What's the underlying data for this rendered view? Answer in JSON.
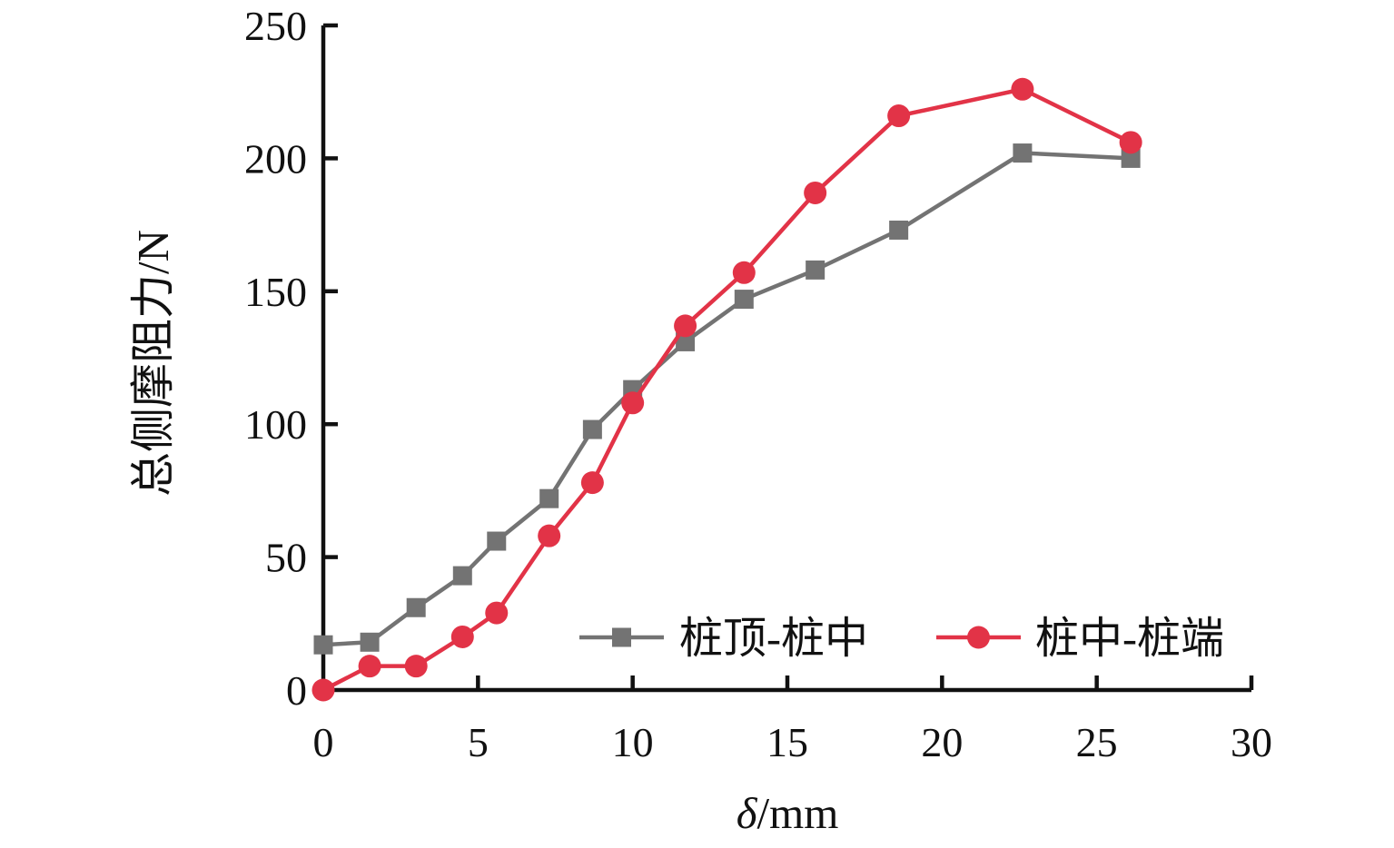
{
  "chart_data": {
    "type": "line",
    "title": "",
    "xlabel": "δ/mm",
    "ylabel": "总侧摩阻力/N",
    "xlim": [
      0,
      30
    ],
    "ylim": [
      0,
      250
    ],
    "xticks": [
      0,
      5,
      10,
      15,
      20,
      25,
      30
    ],
    "yticks": [
      0,
      50,
      100,
      150,
      200,
      250
    ],
    "grid": false,
    "legend_position": "inside-bottom",
    "x": [
      0,
      1.5,
      3,
      4.5,
      5.6,
      7.3,
      8.7,
      10,
      11.7,
      13.6,
      15.9,
      18.6,
      22.6,
      26.1
    ],
    "series": [
      {
        "name": "桩顶-桩中",
        "marker": "square",
        "color": "#737373",
        "values": [
          17,
          18,
          31,
          43,
          56,
          72,
          98,
          113,
          131,
          147,
          158,
          173,
          202,
          200
        ]
      },
      {
        "name": "桩中-桩端",
        "marker": "circle",
        "color": "#e23347",
        "values": [
          0,
          9,
          9,
          20,
          29,
          58,
          78,
          108,
          137,
          157,
          187,
          216,
          226,
          206
        ]
      }
    ]
  },
  "colors": {
    "axis": "#111111",
    "text": "#111111",
    "background": "#ffffff"
  }
}
